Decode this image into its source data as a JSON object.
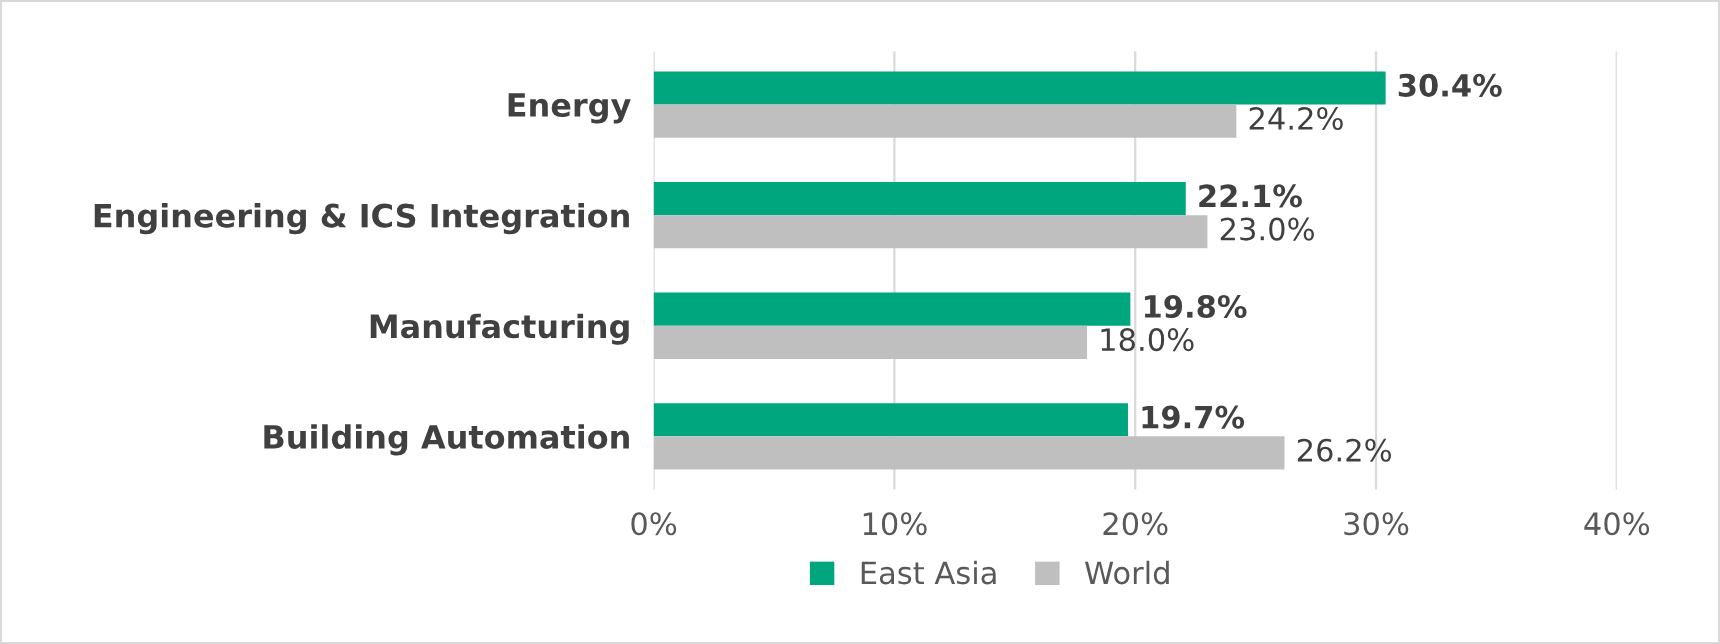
{
  "chart_data": {
    "type": "bar",
    "orientation": "horizontal",
    "categories": [
      "Energy",
      "Engineering & ICS Integration",
      "Manufacturing",
      "Building Automation"
    ],
    "series": [
      {
        "name": "East Asia",
        "color": "#00a67e",
        "values": [
          30.4,
          22.1,
          19.8,
          19.7
        ],
        "value_labels": [
          "30.4%",
          "22.1%",
          "19.8%",
          "19.7%"
        ]
      },
      {
        "name": "World",
        "color": "#bfbfbf",
        "values": [
          24.2,
          23.0,
          18.0,
          26.2
        ],
        "value_labels": [
          "24.2%",
          "23.0%",
          "18.0%",
          "26.2%"
        ]
      }
    ],
    "xlim": [
      0,
      40
    ],
    "xticks": [
      {
        "value": 0,
        "label": "0%"
      },
      {
        "value": 10,
        "label": "10%"
      },
      {
        "value": 20,
        "label": "20%"
      },
      {
        "value": 30,
        "label": "30%"
      },
      {
        "value": 40,
        "label": "40%"
      }
    ],
    "grid": "x",
    "legend": "bottom"
  }
}
